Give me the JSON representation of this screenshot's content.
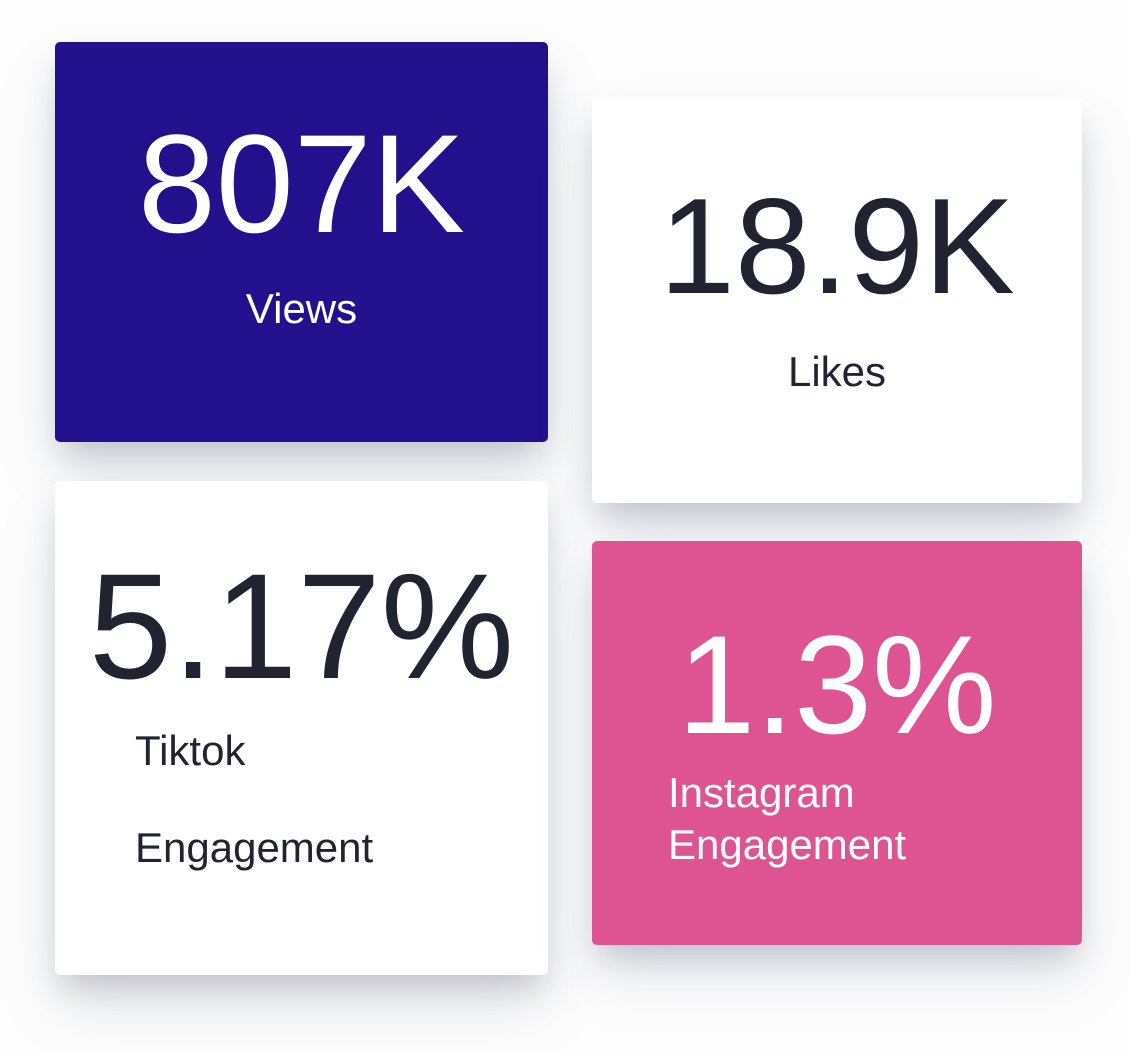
{
  "page": {
    "background_color": "#fdfdfd"
  },
  "cards": [
    {
      "id": "views",
      "value": "807K",
      "label": "Views",
      "background": "#23108C",
      "text_color": "#FFFFFF"
    },
    {
      "id": "likes",
      "value": "18.9K",
      "label": "Likes",
      "background": "#FFFFFF",
      "text_color": "#1F2430"
    },
    {
      "id": "tiktok-engagement",
      "value": "5.17%",
      "label_line1": "Tiktok",
      "label_line2": "Engagement",
      "background": "#FFFFFF",
      "text_color": "#1F2430"
    },
    {
      "id": "instagram-engagement",
      "value": "1.3%",
      "label_line1": "Instagram",
      "label_line2": "Engagement",
      "background": "#DE5493",
      "text_color": "#FFFFFF"
    }
  ]
}
